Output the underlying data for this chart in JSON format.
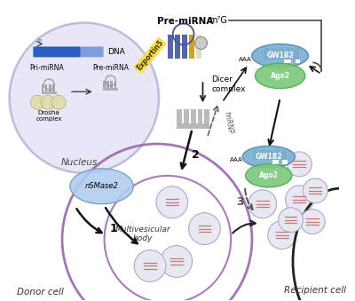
{
  "background_color": "#ffffff",
  "nucleus_label": "Nucleus",
  "donor_cell_label": "Donor cell",
  "mvb_label": "Multivesicular\nbody",
  "recipient_cell_label": "Recipient cell",
  "gw182_color": "#7ab0d4",
  "ago2_color": "#7dc87d",
  "m7g_label": "m⁷G",
  "dicer_label": "Dicer\ncomplex",
  "exportin_label": "Exportin5",
  "pre_mirna_label": "Pre-miRNA",
  "pri_mirna_label": "Pri-miRNA",
  "pre_mirna2_label": "Pre-miRNA",
  "dna_label": "DNA",
  "drosha_label": "Drosha\ncomplex",
  "nsmase2_label": "nSMase2",
  "hnrnp_label": "hnRNP",
  "gw182_label": "GW182",
  "ago2_label": "Ago2",
  "aaa_label": "AAA",
  "path1_label": "1",
  "path2_label": "2",
  "path3_label": "3"
}
